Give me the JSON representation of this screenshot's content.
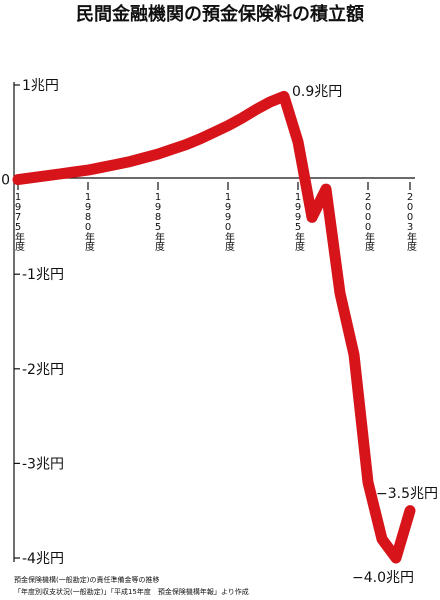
{
  "chart_data": {
    "type": "line",
    "title": "民間金融機関の預金保険料の積立額",
    "x": [
      1975,
      1976,
      1977,
      1978,
      1979,
      1980,
      1981,
      1982,
      1983,
      1984,
      1985,
      1986,
      1987,
      1988,
      1989,
      1990,
      1991,
      1992,
      1993,
      1994,
      1995,
      1996,
      1997,
      1998,
      1999,
      2000,
      2001,
      2002,
      2003
    ],
    "values": [
      0.0,
      0.02,
      0.04,
      0.06,
      0.08,
      0.1,
      0.13,
      0.16,
      0.19,
      0.23,
      0.27,
      0.32,
      0.37,
      0.43,
      0.5,
      0.57,
      0.65,
      0.74,
      0.82,
      0.88,
      0.4,
      -0.4,
      -0.1,
      -1.2,
      -1.85,
      -3.2,
      -3.8,
      -4.0,
      -3.5
    ],
    "color": "#d7141a",
    "xlim": [
      1975,
      2003
    ],
    "xticks": [
      {
        "value": 1975,
        "label": "1975年度"
      },
      {
        "value": 1980,
        "label": "1980年度"
      },
      {
        "value": 1985,
        "label": "1985年度"
      },
      {
        "value": 1990,
        "label": "1990年度"
      },
      {
        "value": 1995,
        "label": "1995年度"
      },
      {
        "value": 2000,
        "label": "2000年度"
      },
      {
        "value": 2003,
        "label": "2003年度"
      }
    ],
    "ylim": [
      -4,
      1
    ],
    "yticks": [
      {
        "value": 1,
        "label": "1兆円"
      },
      0,
      {
        "value": -1,
        "label": "-1兆円"
      },
      {
        "value": -2,
        "label": "-2兆円"
      },
      {
        "value": -3,
        "label": "-3兆円"
      },
      {
        "value": -4,
        "label": "-4兆円"
      }
    ],
    "annotations": [
      "0.9兆円",
      "−3.5兆円",
      "−4.0兆円"
    ],
    "source": [
      "預金保険機構(一般勘定)の責任準備金等の推移",
      "「年度別収支状況(一般勘定)」「平成15年度　預金保険機構年報」より作成"
    ]
  }
}
